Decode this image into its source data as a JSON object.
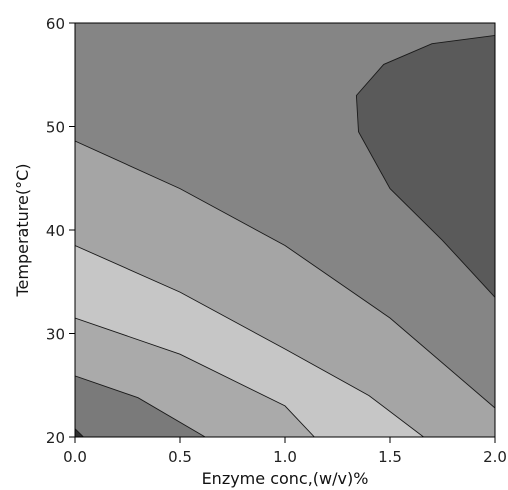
{
  "chart_data": {
    "type": "contour",
    "xlabel": "Enzyme conc,(w/v)%",
    "ylabel": "Temperature(°C)",
    "xlim": [
      0.0,
      2.0
    ],
    "ylim": [
      20,
      60
    ],
    "x_ticks": [
      "0.0",
      "0.5",
      "1.0",
      "1.5",
      "2.0"
    ],
    "y_ticks": [
      "20",
      "30",
      "40",
      "50",
      "60"
    ],
    "grid": false,
    "legend": "none",
    "colors": {
      "band_lowest": "#2f2f2f",
      "band_1": "#7a7a7a",
      "band_2": "#aaaaaa",
      "band_3": "#c6c6c6",
      "band_4": "#a5a5a5",
      "band_5": "#858585",
      "band_top": "#5a5a5a",
      "line": "#1a1a1a"
    },
    "contour_levels": [
      {
        "id": "c1",
        "points": [
          [
            0.0,
            20.8
          ],
          [
            0.04,
            20.0
          ]
        ]
      },
      {
        "id": "c2",
        "points": [
          [
            0.0,
            25.9
          ],
          [
            0.3,
            23.8
          ],
          [
            0.62,
            20.0
          ]
        ]
      },
      {
        "id": "c3",
        "points": [
          [
            0.0,
            31.5
          ],
          [
            0.5,
            28.0
          ],
          [
            1.0,
            23.0
          ],
          [
            1.14,
            20.0
          ]
        ]
      },
      {
        "id": "c4",
        "points": [
          [
            0.0,
            38.5
          ],
          [
            0.5,
            34.0
          ],
          [
            1.0,
            28.5
          ],
          [
            1.4,
            24.0
          ],
          [
            1.66,
            20.0
          ]
        ]
      },
      {
        "id": "c5",
        "points": [
          [
            0.0,
            48.6
          ],
          [
            0.5,
            44.0
          ],
          [
            1.0,
            38.5
          ],
          [
            1.5,
            31.5
          ],
          [
            2.0,
            22.8
          ]
        ]
      },
      {
        "id": "c6",
        "points": [
          [
            2.0,
            58.8
          ],
          [
            1.7,
            58.0
          ],
          [
            1.47,
            56.0
          ],
          [
            1.34,
            53.0
          ],
          [
            1.35,
            49.5
          ],
          [
            1.5,
            44.0
          ],
          [
            1.75,
            39.0
          ],
          [
            2.0,
            33.5
          ]
        ]
      }
    ]
  }
}
